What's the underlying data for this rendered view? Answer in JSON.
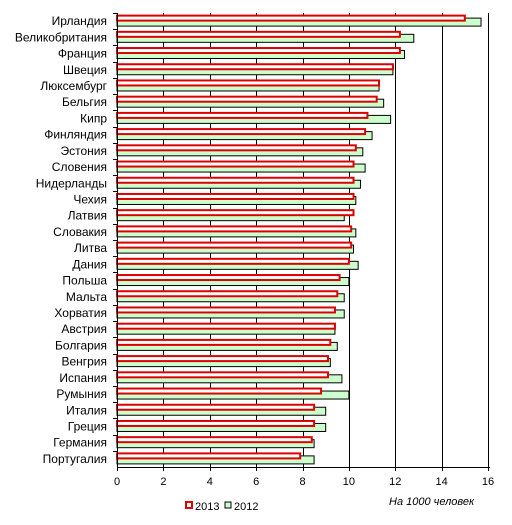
{
  "chart_data": {
    "type": "bar",
    "orientation": "horizontal",
    "categories": [
      "Ирландия",
      "Великобритания",
      "Франция",
      "Швеция",
      "Люксембург",
      "Бельгия",
      "Кипр",
      "Финляндия",
      "Эстония",
      "Словения",
      "Нидерланды",
      "Чехия",
      "Латвия",
      "Словакия",
      "Литва",
      "Дания",
      "Польша",
      "Мальта",
      "Хорватия",
      "Австрия",
      "Болгария",
      "Венгрия",
      "Испания",
      "Румыния",
      "Италия",
      "Греция",
      "Германия",
      "Португалия"
    ],
    "series": [
      {
        "name": "2013",
        "color": "#dd0000",
        "fill": "#ffffff",
        "values": [
          15.0,
          12.2,
          12.2,
          11.9,
          11.3,
          11.2,
          10.8,
          10.7,
          10.3,
          10.2,
          10.2,
          10.2,
          10.2,
          10.1,
          10.1,
          10.0,
          9.6,
          9.5,
          9.4,
          9.4,
          9.2,
          9.1,
          9.1,
          8.8,
          8.5,
          8.5,
          8.4,
          7.9
        ]
      },
      {
        "name": "2012",
        "color": "#000000",
        "fill": "#ccffcc",
        "values": [
          15.7,
          12.8,
          12.4,
          11.9,
          11.3,
          11.5,
          11.8,
          11.0,
          10.6,
          10.7,
          10.5,
          10.3,
          9.8,
          10.3,
          10.2,
          10.4,
          10.0,
          9.8,
          9.8,
          9.4,
          9.5,
          9.2,
          9.7,
          10.0,
          9.0,
          9.0,
          8.5,
          8.5
        ]
      }
    ],
    "xlim": [
      0,
      16
    ],
    "xticks": [
      "0",
      "2",
      "4",
      "6",
      "8",
      "10",
      "12",
      "14",
      "16"
    ],
    "grid": true,
    "unit_label": "На 1000 человек",
    "legend_position": "bottom"
  }
}
